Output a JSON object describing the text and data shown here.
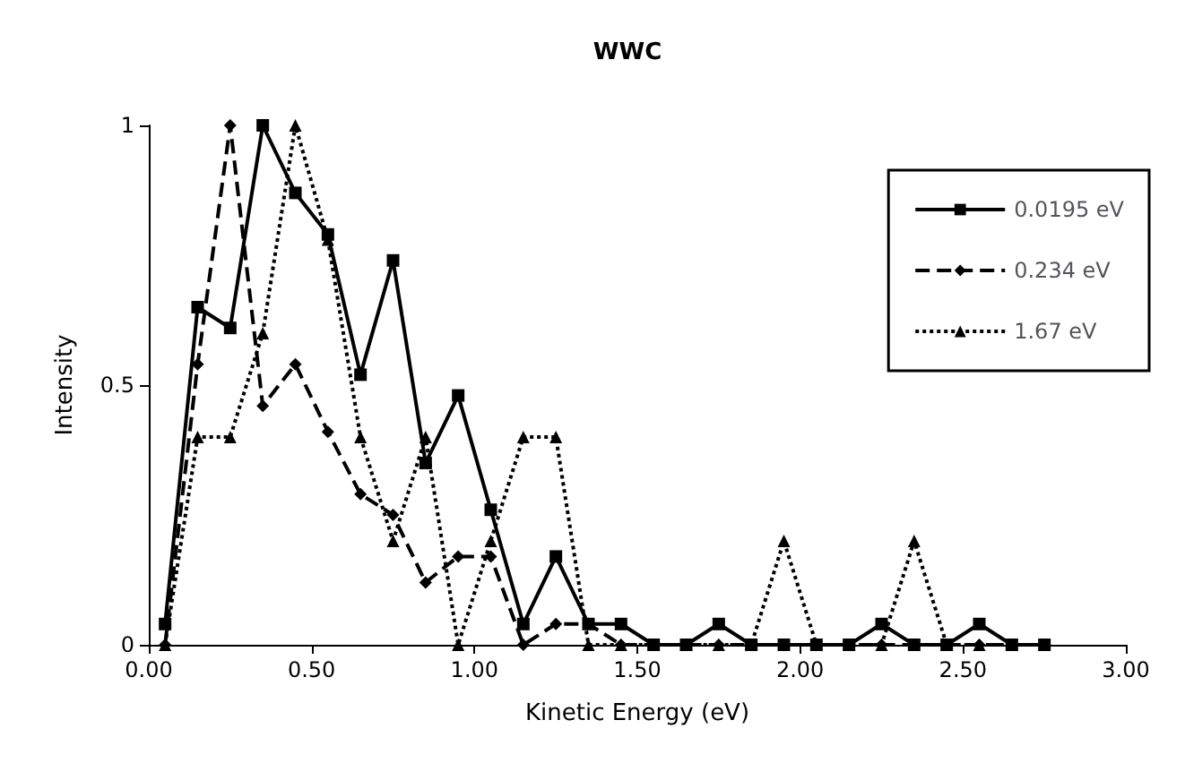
{
  "chart_data": {
    "type": "line",
    "title": "WWC",
    "xlabel": "Kinetic Energy (eV)",
    "ylabel": "Intensity",
    "x": [
      0.05,
      0.15,
      0.25,
      0.35,
      0.45,
      0.55,
      0.65,
      0.75,
      0.85,
      0.95,
      1.05,
      1.15,
      1.25,
      1.35,
      1.45,
      1.55,
      1.65,
      1.75,
      1.85,
      1.95,
      2.05,
      2.15,
      2.25,
      2.35,
      2.45,
      2.55,
      2.65,
      2.75
    ],
    "series": [
      {
        "name": "0.0195 eV",
        "color": "#000000",
        "marker": "square",
        "line_style": "solid",
        "values": [
          0.04,
          0.65,
          0.61,
          1,
          0.87,
          0.79,
          0.52,
          0.74,
          0.35,
          0.48,
          0.26,
          0.04,
          0.17,
          0.04,
          0.04,
          0,
          0,
          0.04,
          0,
          0,
          0,
          0,
          0.04,
          0,
          0,
          0.04,
          0,
          0
        ]
      },
      {
        "name": "0.234 eV",
        "color": "#000000",
        "marker": "diamond",
        "line_style": "dashed",
        "values": [
          0,
          0.54,
          1,
          0.46,
          0.54,
          0.41,
          0.29,
          0.25,
          0.12,
          0.17,
          0.17,
          0,
          0.04,
          0.04,
          0,
          0,
          0,
          0,
          0,
          0,
          0,
          0,
          0,
          0,
          0,
          0,
          0,
          0
        ]
      },
      {
        "name": "1.67 eV",
        "color": "#000000",
        "marker": "triangle",
        "line_style": "dotted",
        "values": [
          0,
          0.4,
          0.4,
          0.6,
          1,
          0.78,
          0.4,
          0.2,
          0.4,
          0,
          0.2,
          0.4,
          0.4,
          0,
          0,
          0,
          0,
          0,
          0,
          0.2,
          0,
          0,
          0,
          0.2,
          0,
          0,
          0,
          0
        ]
      }
    ],
    "xlim": [
      0,
      3
    ],
    "xticks": [
      {
        "value": 0,
        "label": "0.00"
      },
      {
        "value": 0.5,
        "label": "0.50"
      },
      {
        "value": 1,
        "label": "1.00"
      },
      {
        "value": 1.5,
        "label": "1.50"
      },
      {
        "value": 2,
        "label": "2.00"
      },
      {
        "value": 2.5,
        "label": "2.50"
      },
      {
        "value": 3,
        "label": "3.00"
      }
    ],
    "ylim": [
      0,
      1
    ],
    "yticks": [
      0,
      0.5,
      1
    ],
    "grid": false,
    "legend": "right"
  }
}
